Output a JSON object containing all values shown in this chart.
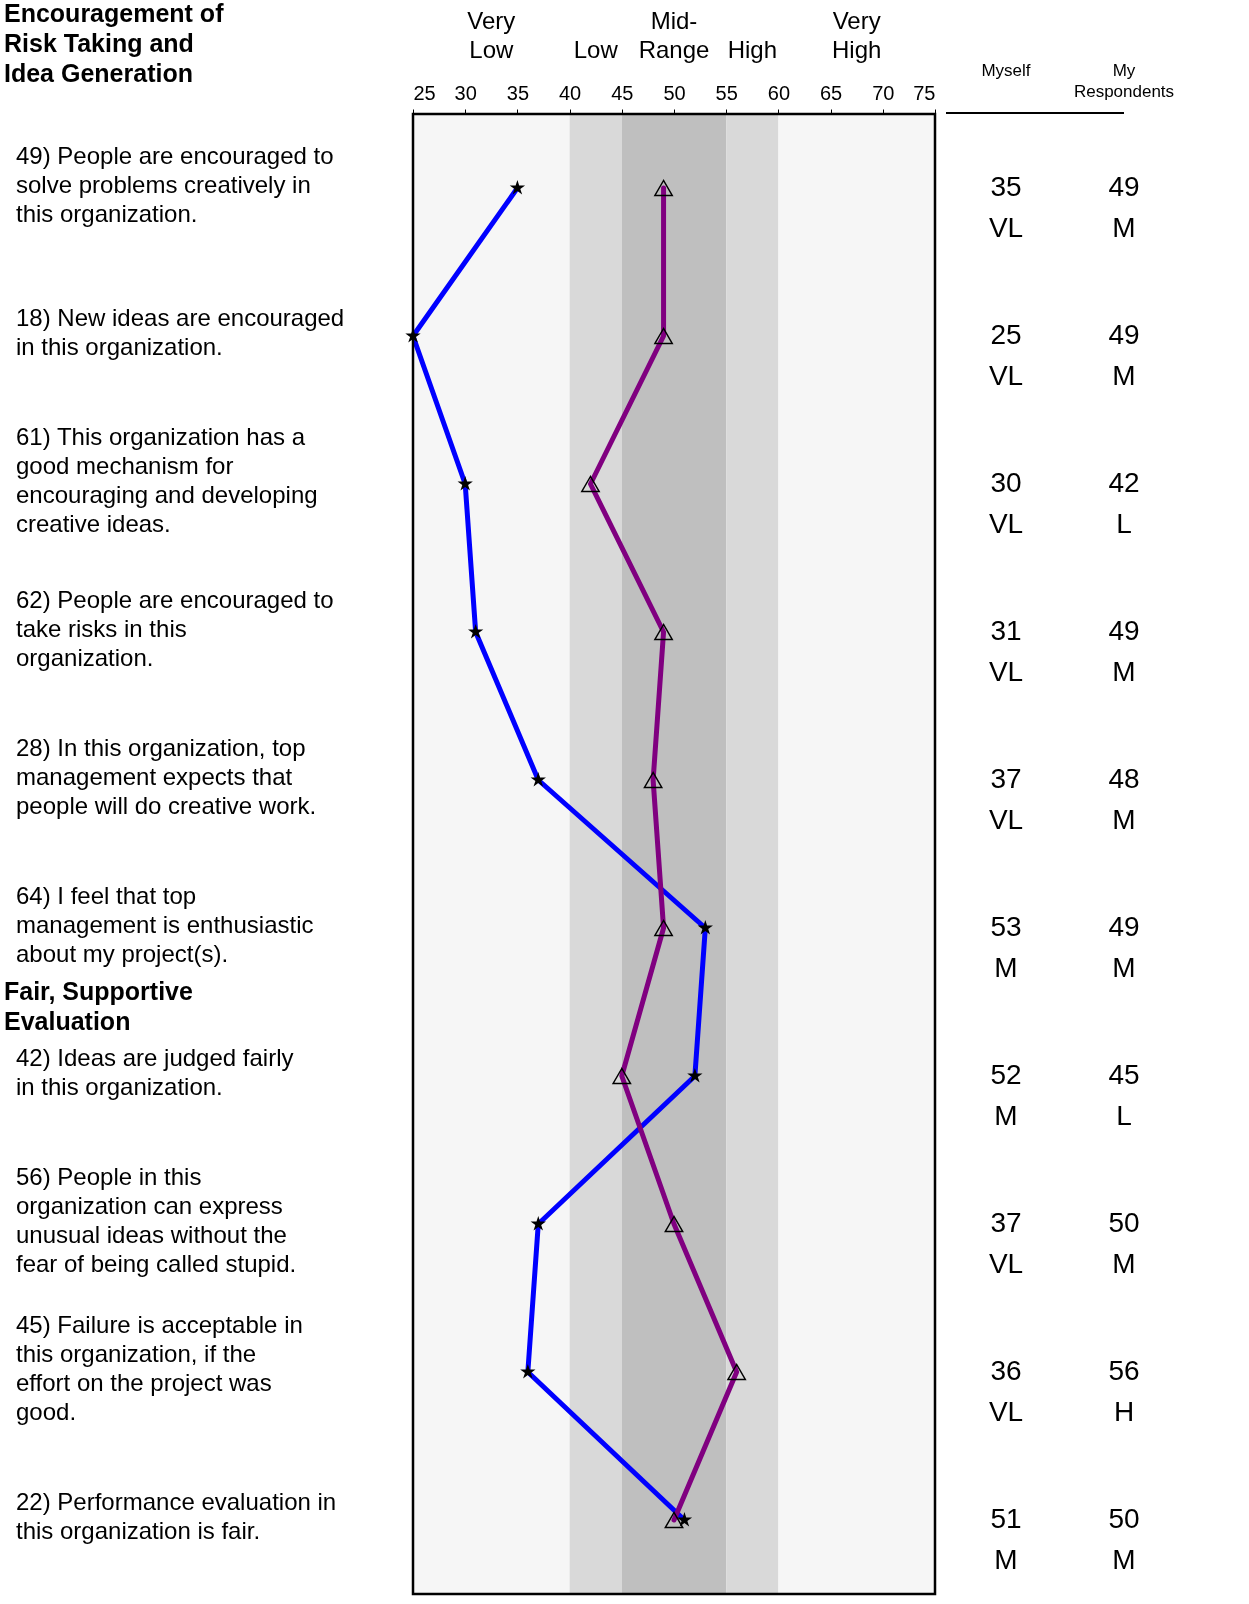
{
  "chart_data": {
    "type": "line",
    "orientation": "horizontal",
    "categories": [
      "49) People are encouraged to solve problems creatively in this organization.",
      "18) New ideas are encouraged in this organization.",
      "61) This organization has a good mechanism for encouraging and developing creative ideas.",
      "62) People are encouraged to take risks in this organization.",
      "28) In this organization, top management expects that people will do creative work.",
      "64) I feel that top management is enthusiastic about my project(s).",
      "42) Ideas are judged fairly in this organization.",
      "56) People in this organization can express unusual ideas without the fear of being called stupid.",
      "45) Failure is acceptable in this organization, if the effort on the project was good.",
      "22) Performance evaluation in this organization is fair."
    ],
    "series": [
      {
        "name": "Myself",
        "color": "#0000ff",
        "marker": "star",
        "values": [
          35,
          25,
          30,
          31,
          37,
          53,
          52,
          37,
          36,
          51
        ],
        "value_labels": [
          "35 VL",
          "25 VL",
          "30 VL",
          "31 VL",
          "37 VL",
          "53 M",
          "52 M",
          "37 VL",
          "36 VL",
          "51 M"
        ]
      },
      {
        "name": "My Respondents",
        "color": "#800080",
        "marker": "triangle",
        "values": [
          49,
          49,
          42,
          49,
          48,
          49,
          45,
          50,
          56,
          50
        ],
        "value_labels": [
          "49 M",
          "49 M",
          "42 L",
          "49 M",
          "48 M",
          "49 M",
          "45 L",
          "50 M",
          "56 H",
          "50 M"
        ]
      }
    ],
    "xlim": [
      25,
      75
    ],
    "xticks": [
      25,
      30,
      35,
      40,
      45,
      50,
      55,
      60,
      65,
      70,
      75
    ],
    "bands": [
      {
        "axis": "x",
        "from": 25,
        "to": 40,
        "label": "Very Low",
        "color": "#f6f6f6"
      },
      {
        "axis": "x",
        "from": 40,
        "to": 45,
        "label": "Low",
        "color": "#d9d9d9"
      },
      {
        "axis": "x",
        "from": 45,
        "to": 55,
        "label": "Mid-Range",
        "color": "#bfbfbf"
      },
      {
        "axis": "x",
        "from": 55,
        "to": 60,
        "label": "High",
        "color": "#d9d9d9"
      },
      {
        "axis": "x",
        "from": 60,
        "to": 75,
        "label": "Very High",
        "color": "#f6f6f6"
      }
    ],
    "annotations": [
      "Encouragement of Risk Taking and Idea Generation",
      "Fair, Supportive Evaluation"
    ]
  }
}
